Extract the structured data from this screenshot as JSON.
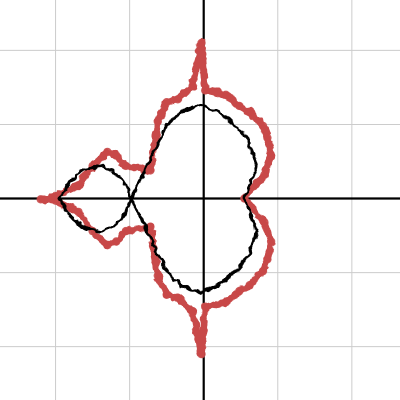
{
  "chart_data": {
    "type": "scatter",
    "title": "",
    "xlabel": "",
    "ylabel": "",
    "xlim": [
      -2.75,
      2.65
    ],
    "ylim": [
      -2.72,
      2.68
    ],
    "grid": true,
    "legend": "none",
    "gridlines_x": [
      -2,
      -1,
      0,
      1,
      2
    ],
    "gridlines_y": [
      -2,
      -1,
      0,
      1,
      2
    ],
    "shape": "Mandelbrot set boundary (fractal), main cardioid plus period-2 bulb",
    "series": [
      {
        "color": "#c84848",
        "style": "thick jagged fractal outline with decorations",
        "points": [
          [
            -2.2,
            -0.01
          ],
          [
            -2.0,
            0.03
          ],
          [
            -1.69,
            0.18
          ],
          [
            -1.5,
            0.44
          ],
          [
            -1.3,
            0.63
          ],
          [
            -1.18,
            0.58
          ],
          [
            -1.05,
            0.44
          ],
          [
            -0.72,
            0.38
          ],
          [
            -0.62,
            1.04
          ],
          [
            -0.5,
            1.3
          ],
          [
            -0.35,
            1.34
          ],
          [
            -0.15,
            1.52
          ],
          [
            -0.03,
            2.1
          ],
          [
            0.02,
            1.46
          ],
          [
            0.3,
            1.4
          ],
          [
            0.48,
            1.25
          ],
          [
            0.62,
            1.17
          ],
          [
            0.8,
            0.98
          ],
          [
            0.86,
            0.82
          ],
          [
            0.91,
            0.58
          ],
          [
            0.82,
            0.32
          ],
          [
            0.55,
            0.0
          ],
          [
            0.82,
            -0.32
          ],
          [
            0.91,
            -0.58
          ],
          [
            0.86,
            -0.82
          ],
          [
            0.8,
            -0.98
          ],
          [
            0.62,
            -1.17
          ],
          [
            0.48,
            -1.25
          ],
          [
            0.3,
            -1.4
          ],
          [
            0.02,
            -1.46
          ],
          [
            -0.03,
            -2.1
          ],
          [
            -0.15,
            -1.52
          ],
          [
            -0.35,
            -1.34
          ],
          [
            -0.5,
            -1.3
          ],
          [
            -0.62,
            -1.04
          ],
          [
            -0.72,
            -0.38
          ],
          [
            -1.05,
            -0.44
          ],
          [
            -1.18,
            -0.58
          ],
          [
            -1.3,
            -0.63
          ],
          [
            -1.5,
            -0.44
          ],
          [
            -1.69,
            -0.18
          ],
          [
            -2.0,
            -0.03
          ]
        ]
      },
      {
        "color": "#000000",
        "style": "inner boundary outline",
        "points": [
          [
            -1.94,
            0.0
          ],
          [
            -1.83,
            0.2
          ],
          [
            -1.62,
            0.4
          ],
          [
            -1.38,
            0.44
          ],
          [
            -1.18,
            0.35
          ],
          [
            -1.05,
            0.18
          ],
          [
            -0.98,
            0.0
          ],
          [
            -0.82,
            0.32
          ],
          [
            -0.63,
            0.72
          ],
          [
            -0.49,
            1.0
          ],
          [
            -0.3,
            1.17
          ],
          [
            -0.05,
            1.27
          ],
          [
            0.18,
            1.18
          ],
          [
            0.4,
            1.02
          ],
          [
            0.6,
            0.78
          ],
          [
            0.72,
            0.44
          ],
          [
            0.55,
            0.0
          ],
          [
            0.72,
            -0.44
          ],
          [
            0.6,
            -0.78
          ],
          [
            0.4,
            -1.02
          ],
          [
            0.18,
            -1.18
          ],
          [
            -0.05,
            -1.27
          ],
          [
            -0.3,
            -1.17
          ],
          [
            -0.49,
            -1.0
          ],
          [
            -0.63,
            -0.72
          ],
          [
            -0.82,
            -0.32
          ],
          [
            -0.98,
            0.0
          ],
          [
            -1.05,
            -0.18
          ],
          [
            -1.18,
            -0.35
          ],
          [
            -1.38,
            -0.44
          ],
          [
            -1.62,
            -0.4
          ],
          [
            -1.83,
            -0.2
          ]
        ]
      }
    ]
  }
}
